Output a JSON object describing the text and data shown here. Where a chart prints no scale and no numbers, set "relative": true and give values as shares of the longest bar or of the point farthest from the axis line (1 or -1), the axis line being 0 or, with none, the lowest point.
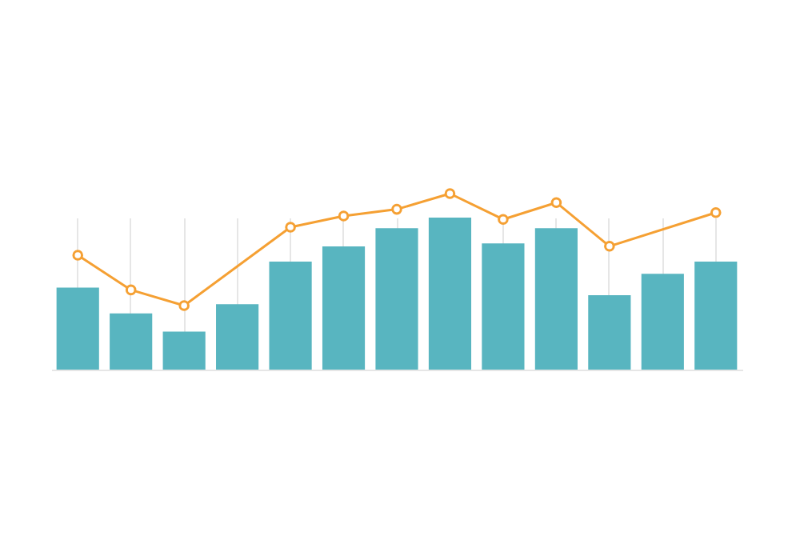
{
  "chart_data": [
    {
      "type": "bar",
      "relative": true,
      "grid": "x",
      "categories": [
        null,
        null,
        null,
        null,
        null,
        null,
        null,
        null,
        null,
        null,
        null,
        null,
        null
      ],
      "series": [
        {
          "color": "#58b5c0",
          "values": [
            0.54,
            0.37,
            0.25,
            0.43,
            0.71,
            0.81,
            0.93,
            1,
            0.83,
            0.93,
            0.49,
            0.63,
            0.71
          ]
        }
      ]
    },
    {
      "type": "line",
      "relative": true,
      "marker": "circle",
      "categories": [
        null,
        null,
        null,
        null,
        null,
        null,
        null,
        null,
        null,
        null,
        null,
        null,
        null
      ],
      "series": [
        {
          "color": "#f5a033",
          "values": [
            0.45,
            0.14,
            0,
            null,
            0.7,
            0.8,
            0.86,
            1,
            0.77,
            0.92,
            0.53,
            null,
            0.83
          ]
        }
      ]
    }
  ]
}
